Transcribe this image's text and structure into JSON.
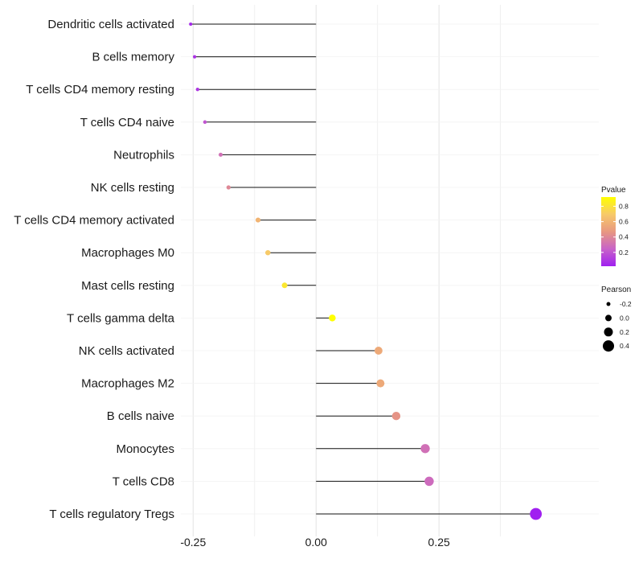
{
  "chart_data": {
    "type": "lollipop",
    "categories": [
      "Dendritic cells activated",
      "B cells memory",
      "T cells CD4 memory resting",
      "T cells CD4 naive",
      "Neutrophils",
      "NK cells resting",
      "T cells CD4 memory activated",
      "Macrophages M0",
      "Mast cells resting",
      "T cells gamma delta",
      "NK cells activated",
      "Macrophages M2",
      "B cells naive",
      "Monocytes",
      "T cells CD8",
      "T cells regulatory  Tregs"
    ],
    "values": [
      -0.255,
      -0.247,
      -0.241,
      -0.226,
      -0.194,
      -0.178,
      -0.118,
      -0.098,
      -0.064,
      0.033,
      0.127,
      0.131,
      0.163,
      0.222,
      0.23,
      0.447
    ],
    "pvalues": [
      0.05,
      0.08,
      0.1,
      0.2,
      0.3,
      0.4,
      0.6,
      0.7,
      0.82,
      0.92,
      0.55,
      0.55,
      0.45,
      0.3,
      0.28,
      0.02
    ],
    "xlim": [
      -0.275,
      0.575
    ],
    "xticks": [
      -0.25,
      0.0,
      0.25
    ],
    "xtick_labels": [
      "-0.25",
      "0.00",
      "0.25"
    ],
    "grid": true,
    "color_legend": {
      "title": "Pvalue",
      "ticks": [
        0.2,
        0.4,
        0.6,
        0.8
      ],
      "tick_labels": [
        "0.2",
        "0.4",
        "0.6",
        "0.8"
      ],
      "range": [
        0.02,
        0.92
      ],
      "colors": [
        "#a020f0",
        "#c863c8",
        "#e89880",
        "#f7c96a",
        "#ffff00"
      ]
    },
    "size_legend": {
      "title": "Pearson",
      "values": [
        -0.2,
        0.0,
        0.2,
        0.4
      ],
      "labels": [
        "-0.2",
        "0.0",
        "0.2",
        "0.4"
      ]
    },
    "legend_position": "right"
  }
}
